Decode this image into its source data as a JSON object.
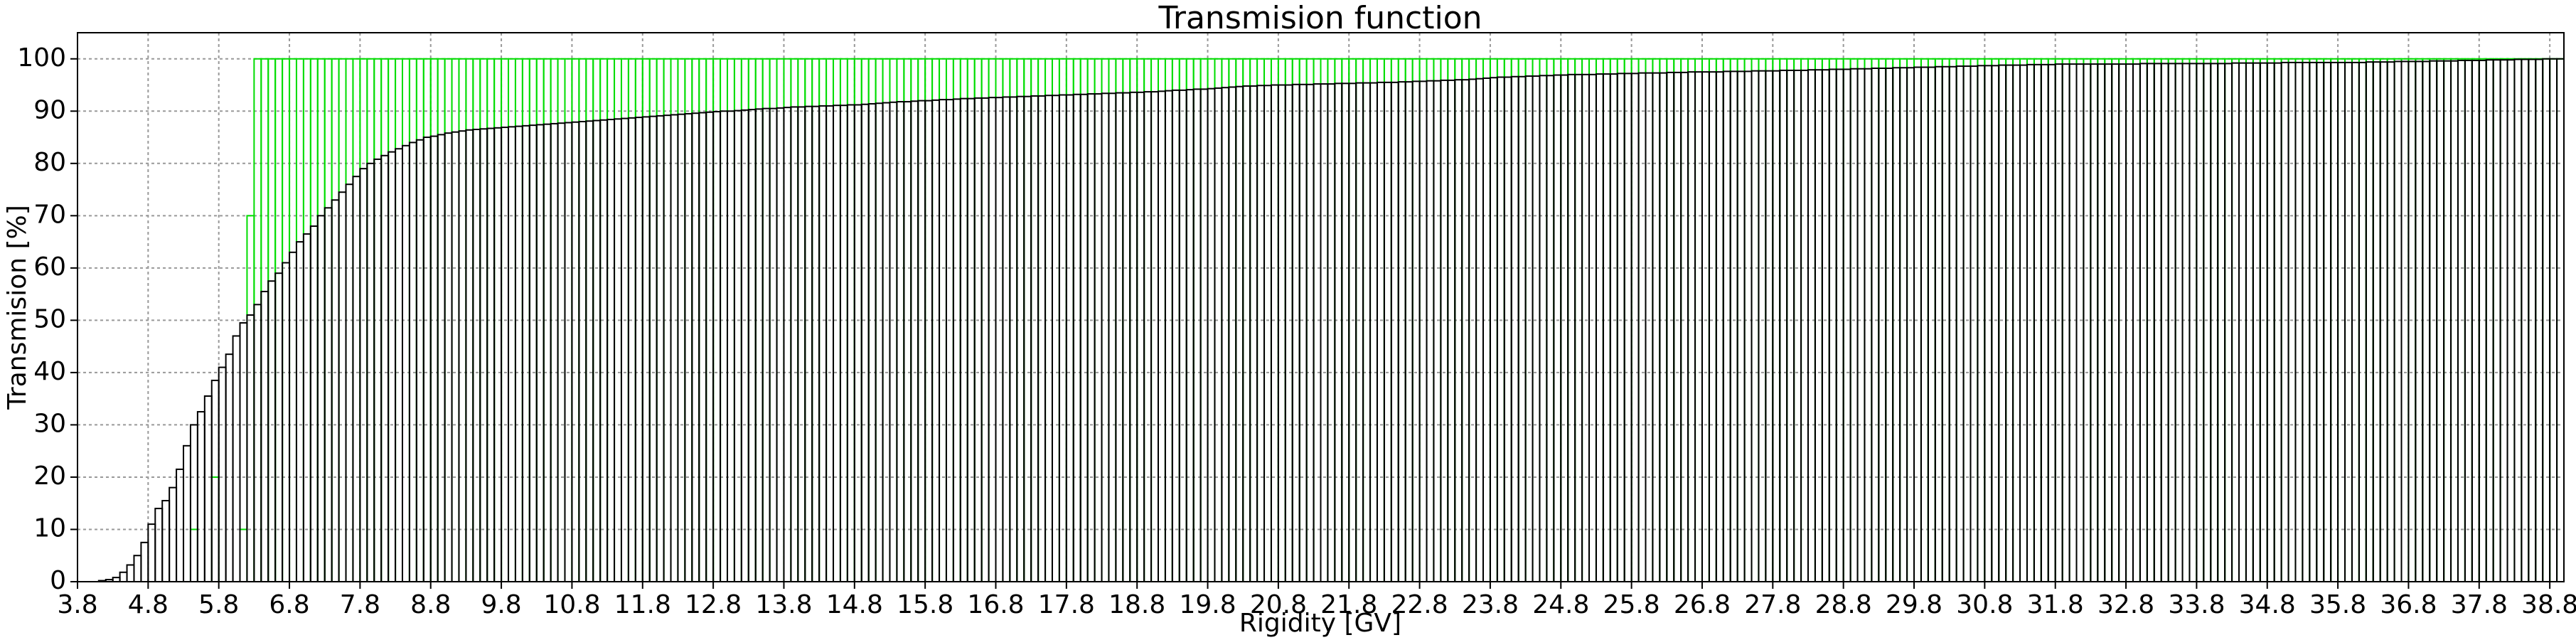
{
  "chart_data": {
    "type": "histogram",
    "title": "Transmision function",
    "xlabel": "Rigidity [GV]",
    "ylabel": "Transmision [%]",
    "xlim": [
      3.8,
      39.0
    ],
    "ylim": [
      0,
      105
    ],
    "grid": true,
    "xticks": [
      3.8,
      4.8,
      5.8,
      6.8,
      7.8,
      8.8,
      9.8,
      10.8,
      11.8,
      12.8,
      13.8,
      14.8,
      15.8,
      16.8,
      17.8,
      18.8,
      19.8,
      20.8,
      21.8,
      22.8,
      23.8,
      24.8,
      25.8,
      26.8,
      27.8,
      28.8,
      29.8,
      30.8,
      31.8,
      32.8,
      33.8,
      34.8,
      35.8,
      36.8,
      37.8,
      38.8
    ],
    "yticks": [
      0,
      10,
      20,
      30,
      40,
      50,
      60,
      70,
      80,
      90,
      100
    ],
    "bins": [
      3.8,
      3.9,
      4.0,
      4.1,
      4.2,
      4.3,
      4.4,
      4.5,
      4.6,
      4.7,
      4.8,
      4.9,
      5.0,
      5.1,
      5.2,
      5.3,
      5.4,
      5.5,
      5.6,
      5.7,
      5.8,
      5.9,
      6.0,
      6.1,
      6.2,
      6.3,
      6.4,
      6.5,
      6.6,
      6.7,
      6.8,
      6.9,
      7.0,
      7.1,
      7.2,
      7.3,
      7.4,
      7.5,
      7.6,
      7.7,
      7.8,
      7.9,
      8.0,
      8.1,
      8.2,
      8.3,
      8.4,
      8.5,
      8.6,
      8.7,
      8.8,
      8.9,
      9.0,
      9.1,
      9.2,
      9.3,
      9.4,
      9.5,
      9.6,
      9.7,
      9.8,
      9.9,
      10.0,
      10.1,
      10.2,
      10.3,
      10.4,
      10.5,
      10.6,
      10.7,
      10.8,
      10.9,
      11.0,
      11.1,
      11.2,
      11.3,
      11.4,
      11.5,
      11.6,
      11.7,
      11.8,
      11.9,
      12.0,
      12.1,
      12.2,
      12.3,
      12.4,
      12.5,
      12.6,
      12.7,
      12.8,
      12.9,
      13.0,
      13.1,
      13.2,
      13.3,
      13.4,
      13.5,
      13.6,
      13.7,
      13.8,
      13.9,
      14.0,
      14.1,
      14.2,
      14.3,
      14.4,
      14.5,
      14.6,
      14.7,
      14.8,
      14.9,
      15.0,
      15.1,
      15.2,
      15.3,
      15.4,
      15.5,
      15.6,
      15.7,
      15.8,
      15.9,
      16.0,
      16.1,
      16.2,
      16.3,
      16.4,
      16.5,
      16.6,
      16.7,
      16.8,
      16.9,
      17.0,
      17.1,
      17.2,
      17.3,
      17.4,
      17.5,
      17.6,
      17.7,
      17.8,
      17.9,
      18.0,
      18.1,
      18.2,
      18.3,
      18.4,
      18.5,
      18.6,
      18.7,
      18.8,
      18.9,
      19.0,
      19.1,
      19.2,
      19.3,
      19.4,
      19.5,
      19.6,
      19.7,
      19.8,
      19.9,
      20.0,
      20.1,
      20.2,
      20.3,
      20.4,
      20.5,
      20.6,
      20.7,
      20.8,
      20.9,
      21.0,
      21.1,
      21.2,
      21.3,
      21.4,
      21.5,
      21.6,
      21.7,
      21.8,
      21.9,
      22.0,
      22.1,
      22.2,
      22.3,
      22.4,
      22.5,
      22.6,
      22.7,
      22.8,
      22.9,
      23.0,
      23.1,
      23.2,
      23.3,
      23.4,
      23.5,
      23.6,
      23.7,
      23.8,
      23.9,
      24.0,
      24.1,
      24.2,
      24.3,
      24.4,
      24.5,
      24.6,
      24.7,
      24.8,
      24.9,
      25.0,
      25.1,
      25.2,
      25.3,
      25.4,
      25.5,
      25.6,
      25.7,
      25.8,
      25.9,
      26.0,
      26.1,
      26.2,
      26.3,
      26.4,
      26.5,
      26.6,
      26.7,
      26.8,
      26.9,
      27.0,
      27.1,
      27.2,
      27.3,
      27.4,
      27.5,
      27.6,
      27.7,
      27.8,
      27.9,
      28.0,
      28.1,
      28.2,
      28.3,
      28.4,
      28.5,
      28.6,
      28.7,
      28.8,
      28.9,
      29.0,
      29.1,
      29.2,
      29.3,
      29.4,
      29.5,
      29.6,
      29.7,
      29.8,
      29.9,
      30.0,
      30.1,
      30.2,
      30.3,
      30.4,
      30.5,
      30.6,
      30.7,
      30.8,
      30.9,
      31.0,
      31.1,
      31.2,
      31.3,
      31.4,
      31.5,
      31.6,
      31.7,
      31.8,
      31.9,
      32.0,
      32.1,
      32.2,
      32.3,
      32.4,
      32.5,
      32.6,
      32.7,
      32.8,
      32.9,
      33.0,
      33.1,
      33.2,
      33.3,
      33.4,
      33.5,
      33.6,
      33.7,
      33.8,
      33.9,
      34.0,
      34.1,
      34.2,
      34.3,
      34.4,
      34.5,
      34.6,
      34.7,
      34.8,
      34.9,
      35.0,
      35.1,
      35.2,
      35.3,
      35.4,
      35.5,
      35.6,
      35.7,
      35.8,
      35.9,
      36.0,
      36.1,
      36.2,
      36.3,
      36.4,
      36.5,
      36.6,
      36.7,
      36.8,
      36.9,
      37.0,
      37.1,
      37.2,
      37.3,
      37.4,
      37.5,
      37.6,
      37.7,
      37.8,
      37.9,
      38.0,
      38.1,
      38.2,
      38.3,
      38.4,
      38.5,
      38.6,
      38.7,
      38.8,
      38.9,
      39.0
    ],
    "series": [
      {
        "color": "#00dd00",
        "values": [
          0,
          0,
          0,
          0,
          0,
          0,
          0,
          0,
          0,
          0,
          0,
          0,
          0,
          0,
          0,
          0,
          10,
          0,
          0,
          20,
          0,
          0,
          0,
          10,
          70,
          100,
          100,
          100,
          100,
          100,
          100,
          100,
          100,
          100,
          100,
          100,
          100,
          100,
          100,
          100,
          100,
          100,
          100,
          100,
          100,
          100,
          100,
          100,
          100,
          100,
          100,
          100,
          100,
          100,
          100,
          100,
          100,
          100,
          100,
          100,
          100,
          100,
          100,
          100,
          100,
          100,
          100,
          100,
          100,
          100,
          100,
          100,
          100,
          100,
          100,
          100,
          100,
          100,
          100,
          100,
          100,
          100,
          100,
          100,
          100,
          100,
          100,
          100,
          100,
          100,
          100,
          100,
          100,
          100,
          100,
          100,
          100,
          100,
          100,
          100,
          100,
          100,
          100,
          100,
          100,
          100,
          100,
          100,
          100,
          100,
          100,
          100,
          100,
          100,
          100,
          100,
          100,
          100,
          100,
          100,
          100,
          100,
          100,
          100,
          100,
          100,
          100,
          100,
          100,
          100,
          100,
          100,
          100,
          100,
          100,
          100,
          100,
          100,
          100,
          100,
          100,
          100,
          100,
          100,
          100,
          100,
          100,
          100,
          100,
          100,
          100,
          100,
          100,
          100,
          100,
          100,
          100,
          100,
          100,
          100,
          100,
          100,
          100,
          100,
          100,
          100,
          100,
          100,
          100,
          100,
          100,
          100,
          100,
          100,
          100,
          100,
          100,
          100,
          100,
          100,
          100,
          100,
          100,
          100,
          100,
          100,
          100,
          100,
          100,
          100,
          100,
          100,
          100,
          100,
          100,
          100,
          100,
          100,
          100,
          100,
          100,
          100,
          100,
          100,
          100,
          100,
          100,
          100,
          100,
          100,
          100,
          100,
          100,
          100,
          100,
          100,
          100,
          100,
          100,
          100,
          100,
          100,
          100,
          100,
          100,
          100,
          100,
          100,
          100,
          100,
          100,
          100,
          100,
          100,
          100,
          100,
          100,
          100,
          100,
          100,
          100,
          100,
          100,
          100,
          100,
          100,
          100,
          100,
          100,
          100,
          100,
          100,
          100,
          100,
          100,
          100,
          100,
          100,
          100,
          100,
          100,
          100,
          100,
          100,
          100,
          100,
          100,
          100,
          100,
          100,
          100,
          100,
          100,
          100,
          100,
          100,
          100,
          100,
          100,
          100,
          100,
          100,
          100,
          100,
          100,
          100,
          100,
          100,
          100,
          100,
          100,
          100,
          100,
          100,
          100,
          100,
          100,
          100,
          100,
          100,
          100,
          100,
          100,
          100,
          100,
          100,
          100,
          100,
          100,
          100,
          100,
          100,
          100,
          100,
          100,
          100,
          100,
          100,
          100,
          100,
          100,
          100,
          100,
          100,
          100,
          100,
          100,
          100,
          100,
          100,
          100,
          100,
          100,
          100,
          100,
          100,
          100,
          100,
          100,
          100,
          100,
          100,
          100,
          100,
          100,
          100,
          100,
          100,
          100,
          100,
          100,
          100
        ]
      },
      {
        "color": "#000000",
        "values": [
          0,
          0,
          0,
          0.2,
          0.4,
          0.8,
          1.8,
          3.2,
          5,
          7.5,
          11,
          14,
          15.5,
          18,
          21.5,
          26,
          30,
          32.5,
          35.5,
          38.5,
          41,
          43.5,
          47,
          49.5,
          51,
          53,
          55.5,
          57.5,
          59,
          61,
          63,
          65,
          66.5,
          68,
          70,
          71.5,
          73,
          74.5,
          76,
          77.5,
          79,
          80,
          80.8,
          81.5,
          82.2,
          82.8,
          83.4,
          84,
          84.5,
          85,
          85.2,
          85.5,
          85.8,
          86,
          86.2,
          86.4,
          86.5,
          86.6,
          86.7,
          86.8,
          86.9,
          87,
          87.1,
          87.2,
          87.3,
          87.4,
          87.5,
          87.6,
          87.7,
          87.8,
          87.9,
          88,
          88.1,
          88.2,
          88.3,
          88.4,
          88.5,
          88.6,
          88.7,
          88.8,
          88.9,
          89,
          89.1,
          89.2,
          89.3,
          89.4,
          89.5,
          89.6,
          89.7,
          89.8,
          89.9,
          90,
          90,
          90.1,
          90.2,
          90.3,
          90.4,
          90.5,
          90.5,
          90.6,
          90.7,
          90.8,
          90.8,
          90.9,
          90.9,
          91,
          91,
          91.1,
          91.1,
          91.2,
          91.2,
          91.3,
          91.4,
          91.5,
          91.6,
          91.7,
          91.8,
          91.8,
          91.9,
          92,
          92,
          92.1,
          92.2,
          92.2,
          92.3,
          92.4,
          92.4,
          92.5,
          92.5,
          92.6,
          92.6,
          92.7,
          92.7,
          92.8,
          92.8,
          92.9,
          92.9,
          93,
          93,
          93.1,
          93.1,
          93.2,
          93.2,
          93.3,
          93.3,
          93.4,
          93.4,
          93.5,
          93.5,
          93.6,
          93.6,
          93.7,
          93.7,
          93.8,
          93.9,
          94,
          94,
          94.1,
          94.2,
          94.2,
          94.3,
          94.4,
          94.5,
          94.6,
          94.7,
          94.8,
          94.8,
          94.9,
          94.9,
          95,
          95,
          95,
          95.1,
          95.1,
          95.1,
          95.2,
          95.2,
          95.2,
          95.3,
          95.3,
          95.3,
          95.4,
          95.4,
          95.4,
          95.5,
          95.5,
          95.5,
          95.6,
          95.6,
          95.7,
          95.7,
          95.8,
          95.8,
          95.9,
          95.9,
          96,
          96,
          96.1,
          96.2,
          96.3,
          96.4,
          96.5,
          96.5,
          96.6,
          96.6,
          96.7,
          96.7,
          96.8,
          96.8,
          96.9,
          96.9,
          97,
          97,
          97,
          97,
          97.1,
          97.1,
          97.1,
          97.2,
          97.2,
          97.2,
          97.3,
          97.3,
          97.3,
          97.3,
          97.4,
          97.4,
          97.4,
          97.5,
          97.5,
          97.5,
          97.5,
          97.5,
          97.6,
          97.6,
          97.6,
          97.6,
          97.7,
          97.7,
          97.7,
          97.7,
          97.8,
          97.8,
          97.8,
          97.8,
          97.9,
          97.9,
          97.9,
          98,
          98,
          98,
          98.1,
          98.1,
          98.1,
          98.2,
          98.2,
          98.2,
          98.3,
          98.3,
          98.3,
          98.4,
          98.4,
          98.4,
          98.5,
          98.5,
          98.5,
          98.6,
          98.6,
          98.6,
          98.7,
          98.7,
          98.7,
          98.8,
          98.8,
          98.8,
          98.8,
          98.9,
          98.9,
          98.9,
          98.9,
          99,
          99,
          99,
          99,
          99,
          99,
          99,
          99,
          99,
          99,
          99,
          99,
          99.1,
          99.1,
          99.1,
          99.1,
          99.1,
          99.1,
          99.1,
          99.1,
          99.1,
          99.1,
          99.1,
          99.1,
          99.1,
          99.2,
          99.2,
          99.2,
          99.2,
          99.2,
          99.2,
          99.2,
          99.3,
          99.3,
          99.3,
          99.3,
          99.3,
          99.3,
          99.3,
          99.3,
          99.3,
          99.3,
          99.3,
          99.3,
          99.4,
          99.4,
          99.4,
          99.4,
          99.5,
          99.5,
          99.5,
          99.5,
          99.5,
          99.6,
          99.6,
          99.6,
          99.6,
          99.7,
          99.7,
          99.7,
          99.7,
          99.8,
          99.8,
          99.8,
          99.8,
          99.9,
          99.9,
          99.9,
          99.9,
          100,
          100,
          100
        ]
      }
    ]
  }
}
